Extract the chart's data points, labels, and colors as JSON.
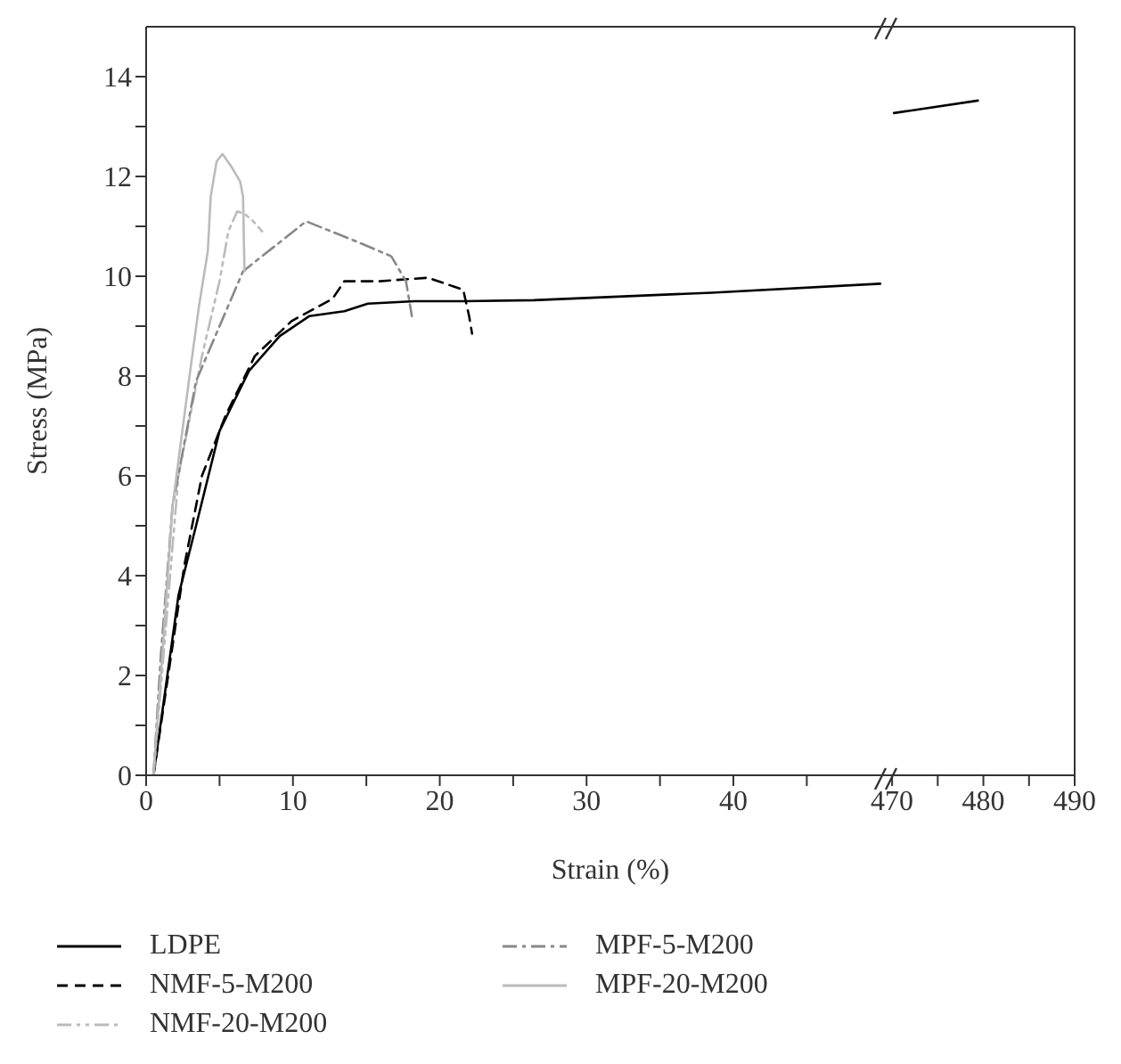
{
  "chart_data": [
    {
      "type": "line",
      "xlabel": "Strain (%)",
      "ylabel": "Stress (MPa)",
      "xlim": [
        0,
        50.5
      ],
      "xticks": [
        0,
        {
          "value": 5,
          "label": null
        },
        10,
        {
          "value": 15,
          "label": null
        },
        20,
        {
          "value": 25,
          "label": null
        },
        30,
        {
          "value": 35,
          "label": null
        },
        40,
        {
          "value": 45,
          "label": null
        }
      ],
      "ylim": [
        0,
        15
      ],
      "yticks": [
        0,
        {
          "value": 1,
          "label": null
        },
        2,
        {
          "value": 3,
          "label": null
        },
        4,
        {
          "value": 5,
          "label": null
        },
        6,
        {
          "value": 7,
          "label": null
        },
        8,
        {
          "value": 9,
          "label": null
        },
        10,
        {
          "value": 11,
          "label": null
        },
        12,
        {
          "value": 13,
          "label": null
        },
        14
      ],
      "grid": false,
      "legend": "bottom",
      "marker": "none",
      "series": [
        {
          "name": "LDPE",
          "color": "#000000",
          "line_style": "solid",
          "x": [
            0.5,
            2.2,
            3.4,
            5.0,
            7.0,
            9.1,
            11.1,
            13.5,
            15.1,
            18.3,
            21.6,
            26.4,
            38.5,
            50.0
          ],
          "values": [
            0,
            3.6,
            5.0,
            6.9,
            8.1,
            8.8,
            9.2,
            9.3,
            9.45,
            9.5,
            9.5,
            9.52,
            9.67,
            9.85
          ]
        },
        {
          "name": "NMF-5-M200",
          "color": "#000000",
          "line_style": "dashed",
          "x": [
            0.5,
            2.6,
            3.8,
            5.4,
            7.4,
            9.9,
            12.7,
            13.5,
            15.9,
            19.2,
            21.6,
            22.0,
            22.2
          ],
          "values": [
            0,
            4.2,
            6.0,
            7.2,
            8.4,
            9.1,
            9.55,
            9.9,
            9.9,
            9.97,
            9.73,
            9.2,
            8.85
          ]
        },
        {
          "name": "NMF-20-M200",
          "color": "#bbbbbb",
          "line_style": "dashdotdot",
          "x": [
            0.5,
            2.2,
            3.8,
            5.0,
            5.6,
            6.2,
            6.7,
            7.3,
            7.9
          ],
          "values": [
            0,
            6.0,
            8.4,
            9.9,
            10.9,
            11.3,
            11.25,
            11.1,
            10.9
          ]
        },
        {
          "name": "MPF-5-M200",
          "color": "#888888",
          "line_style": "dashdot",
          "x": [
            0.5,
            1.0,
            1.8,
            3.4,
            6.6,
            10.9,
            14.3,
            16.7,
            17.7,
            18.1
          ],
          "values": [
            0,
            2.4,
            5.4,
            7.9,
            10.1,
            11.1,
            10.7,
            10.4,
            9.9,
            9.2
          ]
        },
        {
          "name": "MPF-20-M200",
          "color": "#bbbbbb",
          "line_style": "solid",
          "x": [
            0.5,
            1.1,
            1.8,
            3.0,
            3.6,
            4.2,
            4.4,
            4.8,
            5.2,
            5.8,
            6.4,
            6.6,
            6.7
          ],
          "values": [
            0,
            2.4,
            5.4,
            8.1,
            9.4,
            10.5,
            11.6,
            12.3,
            12.45,
            12.2,
            11.9,
            11.6,
            10.1
          ]
        }
      ]
    },
    {
      "type": "line",
      "xlim": [
        469.5,
        490
      ],
      "xticks": [
        470,
        {
          "value": 475,
          "label": null
        },
        480,
        {
          "value": 485,
          "label": null
        },
        490
      ],
      "ylim": [
        0,
        15
      ],
      "tick_labels": "x",
      "grid": false,
      "marker": "none",
      "series": [
        {
          "color": "#000000",
          "line_style": "solid",
          "x": [
            470.2,
            479.4
          ],
          "values": [
            13.27,
            13.52
          ]
        }
      ]
    }
  ]
}
